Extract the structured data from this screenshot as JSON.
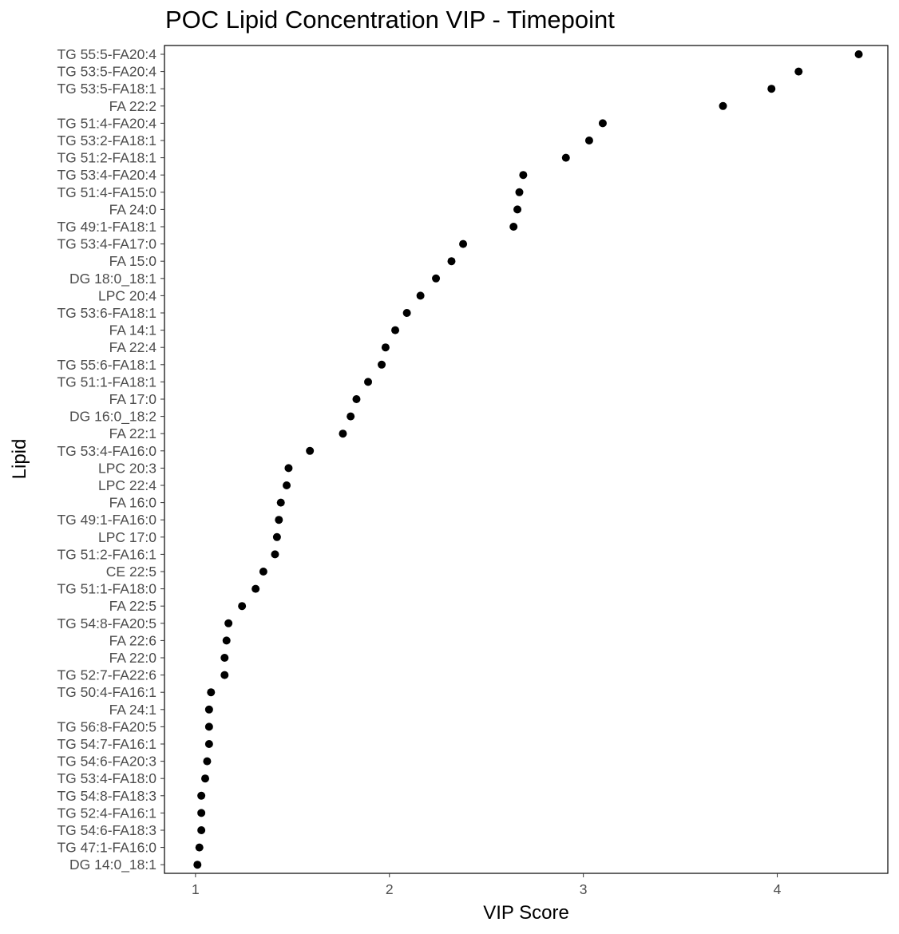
{
  "chart_data": {
    "type": "scatter",
    "title": "POC Lipid Concentration VIP - Timepoint",
    "xlabel": "VIP Score",
    "ylabel": "Lipid",
    "xlim": [
      0.84,
      4.57
    ],
    "xticks": [
      1,
      2,
      3,
      4
    ],
    "xtick_labels": [
      "1",
      "2",
      "3",
      "4"
    ],
    "grid": false,
    "point_color": "#000000",
    "categories": [
      "TG 55:5-FA20:4",
      "TG 53:5-FA20:4",
      "TG 53:5-FA18:1",
      "FA 22:2",
      "TG 51:4-FA20:4",
      "TG 53:2-FA18:1",
      "TG 51:2-FA18:1",
      "TG 53:4-FA20:4",
      "TG 51:4-FA15:0",
      "FA 24:0",
      "TG 49:1-FA18:1",
      "TG 53:4-FA17:0",
      "FA 15:0",
      "DG 18:0_18:1",
      "LPC 20:4",
      "TG 53:6-FA18:1",
      "FA 14:1",
      "FA 22:4",
      "TG 55:6-FA18:1",
      "TG 51:1-FA18:1",
      "FA 17:0",
      "DG 16:0_18:2",
      "FA 22:1",
      "TG 53:4-FA16:0",
      "LPC 20:3",
      "LPC 22:4",
      "FA 16:0",
      "TG 49:1-FA16:0",
      "LPC 17:0",
      "TG 51:2-FA16:1",
      "CE 22:5",
      "TG 51:1-FA18:0",
      "FA 22:5",
      "TG 54:8-FA20:5",
      "FA 22:6",
      "FA 22:0",
      "TG 52:7-FA22:6",
      "TG 50:4-FA16:1",
      "FA 24:1",
      "TG 56:8-FA20:5",
      "TG 54:7-FA16:1",
      "TG 54:6-FA20:3",
      "TG 53:4-FA18:0",
      "TG 54:8-FA18:3",
      "TG 52:4-FA16:1",
      "TG 54:6-FA18:3",
      "TG 47:1-FA16:0",
      "DG 14:0_18:1"
    ],
    "values": [
      4.42,
      4.11,
      3.97,
      3.72,
      3.1,
      3.03,
      2.91,
      2.69,
      2.67,
      2.66,
      2.64,
      2.38,
      2.32,
      2.24,
      2.16,
      2.09,
      2.03,
      1.98,
      1.96,
      1.89,
      1.83,
      1.8,
      1.76,
      1.59,
      1.48,
      1.47,
      1.44,
      1.43,
      1.42,
      1.41,
      1.35,
      1.31,
      1.24,
      1.17,
      1.16,
      1.15,
      1.15,
      1.08,
      1.07,
      1.07,
      1.07,
      1.06,
      1.05,
      1.03,
      1.03,
      1.03,
      1.02,
      1.01
    ]
  }
}
